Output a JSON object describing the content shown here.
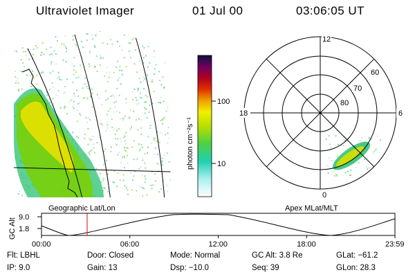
{
  "header": {
    "title": "Ultraviolet Imager",
    "date": "01 Jul 00",
    "time": "03:06:05 UT"
  },
  "left_panel": {
    "label": "Geographic Lat/Lon"
  },
  "right_panel": {
    "label": "Apex MLat/MLT",
    "hour_labels": {
      "top": "12",
      "left": "18",
      "right": "6",
      "bottom": "0"
    },
    "lat_labels": [
      "60",
      "70",
      "80"
    ]
  },
  "colorbar": {
    "label": "photon cm⁻²s⁻¹",
    "ticks": [
      "100",
      "10"
    ]
  },
  "timeline": {
    "ylabel": "GC Alt",
    "yticks": [
      "9.0",
      "1.8"
    ],
    "xticks": [
      "00:00",
      "06:00",
      "12:00",
      "18:00",
      "23:59"
    ],
    "marker_time_hours": 3.1
  },
  "info": {
    "flt": "Flt: LBHL",
    "ip": "IP:  9.0",
    "door": "Door: Closed",
    "gain": "Gain: 13",
    "mode": "Mode: Normal",
    "dsp": "Dsp:  −10.0",
    "gcalt": "GC Alt: 3.8 Re",
    "seq": "Seq: 39",
    "glat": "GLat: −61.2",
    "glon": "GLon:  28.3"
  },
  "colors": {
    "aurora_core": "#e8e000",
    "aurora_mid": "#7ad000",
    "aurora_outer": "#2ac070",
    "marker": "#e00000"
  }
}
